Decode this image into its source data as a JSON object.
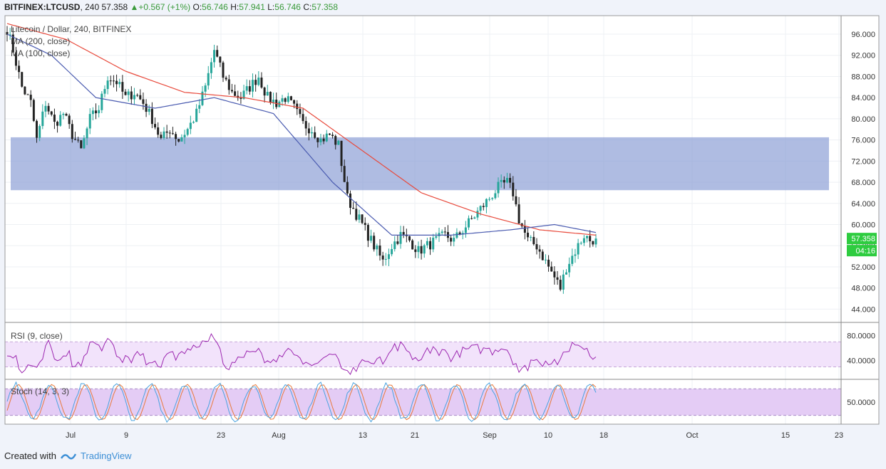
{
  "header": {
    "symbol": "BITFINEX:LTCUSD",
    "interval": "240",
    "last": "57.358",
    "change": "+0.567 (+1%)",
    "o_label": "O:",
    "o": "56.746",
    "h_label": "H:",
    "h": "57.941",
    "l_label": "L:",
    "l": "56.746",
    "c_label": "C:",
    "c": "57.358"
  },
  "legend": {
    "title": "Litecoin / Dollar, 240, BITFINEX",
    "ma200": "MA (200, close)",
    "ma100": "MA (100, close)"
  },
  "price_tag": "57.358",
  "countdown": "04:16",
  "footer": {
    "created_with": "Created with",
    "brand": "TradingView"
  },
  "colors": {
    "up": "#26a69a",
    "down": "#222222",
    "ma200": "#e84a3c",
    "ma100": "#4a5bb0",
    "zone": "#8d9fd6",
    "rsi": "#9c27b0",
    "stoch_k": "#4aa3df",
    "stoch_d": "#e87a3c",
    "tag": "#2ecc40"
  },
  "chart_data": [
    {
      "type": "candlestick",
      "title": "Litecoin / Dollar, 240, BITFINEX",
      "x_ticks": [
        "Jul",
        "9",
        "23",
        "Aug",
        "13",
        "21",
        "Sep",
        "10",
        "18",
        "Oct",
        "15",
        "23"
      ],
      "y_ticks": [
        "96.000",
        "92.000",
        "88.000",
        "84.000",
        "80.000",
        "76.000",
        "72.000",
        "68.000",
        "64.000",
        "60.000",
        "56.000",
        "52.000",
        "48.000",
        "44.000"
      ],
      "ylim": [
        41.5,
        99.5
      ],
      "resistance_zone": [
        66.5,
        76.5
      ],
      "path_points": [
        [
          0,
          97
        ],
        [
          2,
          93
        ],
        [
          5,
          86
        ],
        [
          8,
          83
        ],
        [
          10,
          76
        ],
        [
          13,
          83
        ],
        [
          16,
          79
        ],
        [
          19,
          81
        ],
        [
          22,
          77
        ],
        [
          25,
          74
        ],
        [
          28,
          80
        ],
        [
          31,
          82
        ],
        [
          34,
          88
        ],
        [
          37,
          87
        ],
        [
          40,
          84
        ],
        [
          43,
          85
        ],
        [
          46,
          83
        ],
        [
          49,
          80
        ],
        [
          52,
          76
        ],
        [
          55,
          78
        ],
        [
          58,
          76
        ],
        [
          61,
          78
        ],
        [
          64,
          81
        ],
        [
          67,
          86
        ],
        [
          70,
          93
        ],
        [
          73,
          88
        ],
        [
          76,
          85
        ],
        [
          79,
          84
        ],
        [
          82,
          86
        ],
        [
          85,
          88
        ],
        [
          88,
          84
        ],
        [
          91,
          83
        ],
        [
          94,
          84
        ],
        [
          97,
          82
        ],
        [
          100,
          79
        ],
        [
          103,
          78
        ],
        [
          106,
          76
        ],
        [
          109,
          77
        ],
        [
          112,
          75
        ],
        [
          115,
          65
        ],
        [
          118,
          62
        ],
        [
          121,
          59
        ],
        [
          124,
          56
        ],
        [
          127,
          53
        ],
        [
          130,
          56
        ],
        [
          133,
          58
        ],
        [
          136,
          57
        ],
        [
          139,
          55
        ],
        [
          142,
          56
        ],
        [
          145,
          57
        ],
        [
          148,
          58
        ],
        [
          151,
          57
        ],
        [
          154,
          59
        ],
        [
          157,
          61
        ],
        [
          160,
          63
        ],
        [
          163,
          65
        ],
        [
          166,
          67
        ],
        [
          169,
          68
        ],
        [
          171,
          66
        ],
        [
          173,
          61
        ],
        [
          176,
          57
        ],
        [
          179,
          56
        ],
        [
          182,
          53
        ],
        [
          185,
          50
        ],
        [
          187,
          48
        ],
        [
          189,
          52
        ],
        [
          192,
          55
        ],
        [
          195,
          58
        ],
        [
          197,
          57
        ],
        [
          199,
          57.358
        ]
      ],
      "ma200": [
        [
          0,
          98
        ],
        [
          20,
          95
        ],
        [
          40,
          89
        ],
        [
          60,
          85
        ],
        [
          80,
          84
        ],
        [
          100,
          82
        ],
        [
          120,
          74
        ],
        [
          140,
          66
        ],
        [
          160,
          62
        ],
        [
          180,
          59
        ],
        [
          199,
          58
        ]
      ],
      "ma100": [
        [
          0,
          96
        ],
        [
          15,
          92
        ],
        [
          30,
          84
        ],
        [
          50,
          82
        ],
        [
          70,
          84
        ],
        [
          90,
          81
        ],
        [
          110,
          68
        ],
        [
          130,
          58
        ],
        [
          150,
          58
        ],
        [
          170,
          59
        ],
        [
          185,
          60
        ],
        [
          199,
          58.5
        ]
      ]
    },
    {
      "type": "line",
      "title": "RSI (9, close)",
      "y_ticks": [
        "80.0000",
        "40.0000"
      ],
      "ylim": [
        10,
        100
      ],
      "band": [
        30,
        70
      ]
    },
    {
      "type": "line",
      "title": "Stoch (14, 3, 3)",
      "y_ticks": [
        "50.0000"
      ],
      "ylim": [
        0,
        100
      ],
      "band": [
        20,
        80
      ],
      "series": [
        {
          "values": []
        },
        {
          "values": []
        }
      ]
    }
  ]
}
